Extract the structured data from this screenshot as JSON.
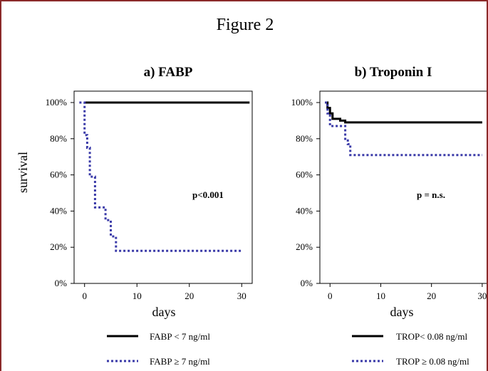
{
  "figure_title": "Figure 2",
  "colors": {
    "solid": "#000000",
    "dotted": "#3a3aa8"
  },
  "chart_data": [
    {
      "type": "line",
      "title": "a) FABP",
      "xlabel": "days",
      "ylabel": "survival",
      "xlim": [
        -2,
        32
      ],
      "ylim": [
        0,
        100
      ],
      "xticks": [
        "0",
        "10",
        "20",
        "30"
      ],
      "yticks": [
        "0%",
        "20%",
        "40%",
        "60%",
        "80%",
        "100%"
      ],
      "annotation": "p<0.001",
      "series": [
        {
          "name": "FABP < 7 ng/ml",
          "style": "solid",
          "x": [
            0,
            31.5
          ],
          "y": [
            100,
            100
          ]
        },
        {
          "name": "FABP ≥ 7 ng/ml",
          "style": "dotted",
          "x": [
            -1,
            0,
            0,
            0.5,
            0.5,
            1,
            1,
            2,
            2,
            4,
            4,
            5,
            5,
            6,
            6,
            30
          ],
          "y": [
            100,
            100,
            82,
            82,
            75,
            75,
            59,
            59,
            42,
            42,
            35,
            35,
            26,
            26,
            18,
            18
          ]
        }
      ]
    },
    {
      "type": "line",
      "title": "b) Troponin I",
      "xlabel": "days",
      "ylabel": "",
      "xlim": [
        -2,
        31
      ],
      "ylim": [
        0,
        100
      ],
      "xticks": [
        "0",
        "10",
        "20",
        "30"
      ],
      "yticks": [
        "0%",
        "20%",
        "40%",
        "60%",
        "80%",
        "100%"
      ],
      "annotation": "p = n.s.",
      "series": [
        {
          "name": "TROP< 0.08 ng/ml",
          "style": "solid",
          "x": [
            -1,
            -0.5,
            -0.5,
            0,
            0,
            0.5,
            0.5,
            2,
            2,
            3,
            3,
            30
          ],
          "y": [
            100,
            100,
            97,
            97,
            94,
            94,
            91,
            91,
            90,
            90,
            89,
            89
          ]
        },
        {
          "name": "TROP ≥ 0.08 ng/ml",
          "style": "dotted",
          "x": [
            -1,
            -0.5,
            -0.5,
            0,
            0,
            3,
            3,
            3.5,
            3.5,
            4,
            4,
            30
          ],
          "y": [
            100,
            100,
            94,
            94,
            87,
            87,
            79,
            79,
            77,
            77,
            71,
            71
          ]
        }
      ]
    }
  ]
}
